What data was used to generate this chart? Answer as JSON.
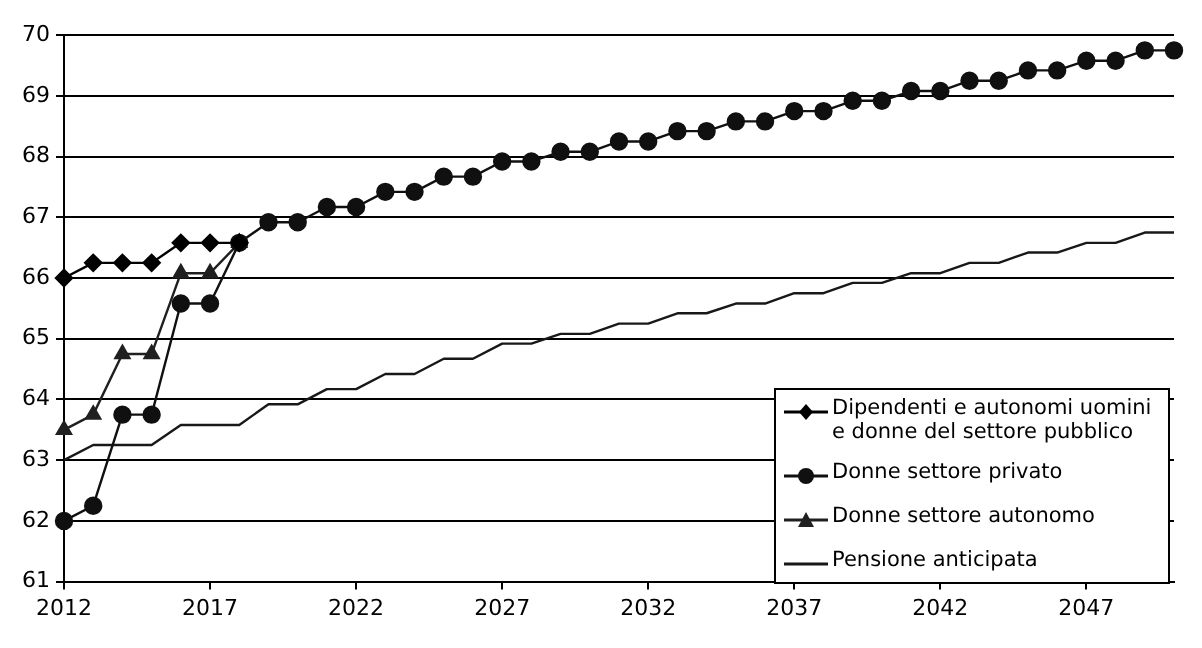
{
  "chart_data": {
    "type": "line",
    "x": [
      2012,
      2013,
      2014,
      2015,
      2016,
      2017,
      2018,
      2019,
      2020,
      2021,
      2022,
      2023,
      2024,
      2025,
      2026,
      2027,
      2028,
      2029,
      2030,
      2031,
      2032,
      2033,
      2034,
      2035,
      2036,
      2037,
      2038,
      2039,
      2040,
      2041,
      2042,
      2043,
      2044,
      2045,
      2046,
      2047,
      2048,
      2049,
      2050
    ],
    "series": [
      {
        "name": "Dipendenti e autonomi uomini e donne del settore pubblico",
        "color": "#000000",
        "marker": "diamond",
        "values": [
          66,
          66.25,
          66.25,
          66.25,
          66.58,
          66.58,
          66.58,
          null,
          null,
          null,
          null,
          null,
          null,
          null,
          null,
          null,
          null,
          null,
          null,
          null,
          null,
          null,
          null,
          null,
          null,
          null,
          null,
          null,
          null,
          null,
          null,
          null,
          null,
          null,
          null,
          null,
          null,
          null,
          null
        ]
      },
      {
        "name": "Donne settore privato",
        "color": "#101010",
        "marker": "circle",
        "values": [
          62,
          62.25,
          63.75,
          63.75,
          65.58,
          65.58,
          66.58,
          66.92,
          66.92,
          67.17,
          67.17,
          67.42,
          67.42,
          67.67,
          67.67,
          67.92,
          67.92,
          68.08,
          68.08,
          68.25,
          68.25,
          68.42,
          68.42,
          68.58,
          68.58,
          68.75,
          68.75,
          68.92,
          68.92,
          69.08,
          69.08,
          69.25,
          69.25,
          69.42,
          69.42,
          69.58,
          69.58,
          69.75,
          69.75
        ]
      },
      {
        "name": "Donne settore autonomo",
        "color": "#202020",
        "marker": "triangle",
        "values": [
          63.5,
          63.75,
          64.75,
          64.75,
          66.08,
          66.08,
          66.58,
          null,
          null,
          null,
          null,
          null,
          null,
          null,
          null,
          null,
          null,
          null,
          null,
          null,
          null,
          null,
          null,
          null,
          null,
          null,
          null,
          null,
          null,
          null,
          null,
          null,
          null,
          null,
          null,
          null,
          null,
          null,
          null
        ]
      },
      {
        "name": "Pensione anticipata",
        "color": "#181818",
        "marker": "none",
        "values": [
          63,
          63.25,
          63.25,
          63.25,
          63.58,
          63.58,
          63.58,
          63.92,
          63.92,
          64.17,
          64.17,
          64.42,
          64.42,
          64.67,
          64.67,
          64.92,
          64.92,
          65.08,
          65.08,
          65.25,
          65.25,
          65.42,
          65.42,
          65.58,
          65.58,
          65.75,
          65.75,
          65.92,
          65.92,
          66.08,
          66.08,
          66.25,
          66.25,
          66.42,
          66.42,
          66.58,
          66.58,
          66.75,
          66.75
        ]
      }
    ],
    "xlim": [
      2012,
      2050
    ],
    "xticks": [
      2012,
      2017,
      2022,
      2027,
      2032,
      2037,
      2042,
      2047
    ],
    "ylim": [
      61,
      70
    ],
    "yticks": [
      61,
      62,
      63,
      64,
      65,
      66,
      67,
      68,
      69,
      70
    ],
    "grid": "y",
    "legend": "bottom right",
    "line_style": "solid"
  }
}
